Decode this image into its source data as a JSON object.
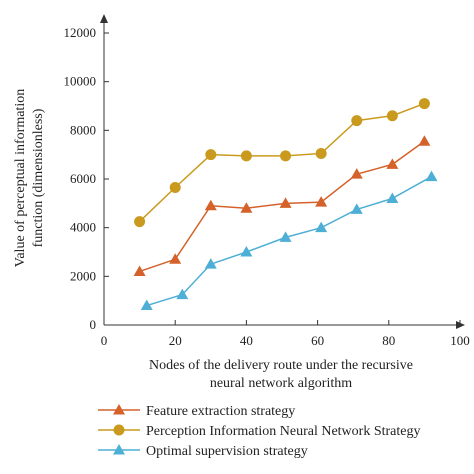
{
  "chart_data": {
    "type": "line",
    "xlabel": [
      "Nodes of the delivery route under the recursive",
      "neural network algorithm"
    ],
    "ylabel": [
      "Value of perceptual information",
      "function (dimensionless)"
    ],
    "xlim": [
      0,
      100
    ],
    "ylim": [
      0,
      12000
    ],
    "xticks": [
      0,
      20,
      40,
      60,
      80,
      100
    ],
    "yticks": [
      0,
      2000,
      4000,
      6000,
      8000,
      10000,
      12000
    ],
    "grid": false,
    "legend_position": "bottom",
    "series": [
      {
        "name": "Feature extraction strategy",
        "color": "#d4622a",
        "marker": "triangle",
        "x": [
          10,
          20,
          30,
          40,
          51,
          61,
          71,
          81,
          90
        ],
        "y": [
          2200,
          2700,
          4900,
          4800,
          5000,
          5050,
          6200,
          6600,
          7550
        ]
      },
      {
        "name": "Perception Information Neural Network Strategy",
        "color": "#c99a1e",
        "marker": "circle",
        "x": [
          10,
          20,
          30,
          40,
          51,
          61,
          71,
          81,
          90
        ],
        "y": [
          4250,
          5650,
          7000,
          6950,
          6950,
          7050,
          8400,
          8600,
          9100
        ]
      },
      {
        "name": "Optimal supervision strategy",
        "color": "#4eafd6",
        "marker": "triangle",
        "x": [
          12,
          22,
          30,
          40,
          51,
          61,
          71,
          81,
          92
        ],
        "y": [
          800,
          1250,
          2500,
          3000,
          3600,
          4000,
          4750,
          5200,
          6100
        ]
      }
    ]
  }
}
